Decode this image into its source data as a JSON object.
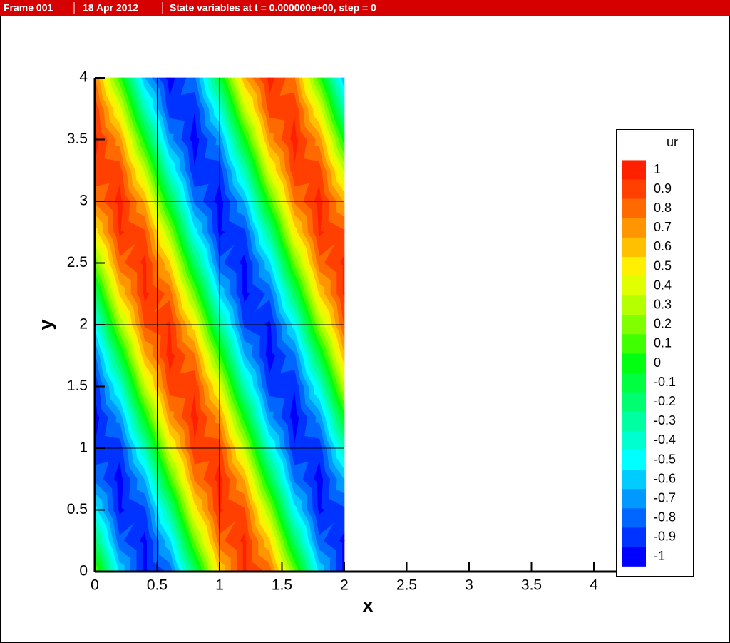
{
  "header": {
    "frame": "Frame 001",
    "date": "18 Apr 2012",
    "title": "State variables at t = 0.000000e+00, step = 0"
  },
  "chart_data": {
    "type": "contour",
    "x_label": "x",
    "y_label": "y",
    "xlim": [
      0,
      4.4
    ],
    "ylim": [
      0,
      4
    ],
    "xticks": [
      0,
      0.5,
      1,
      1.5,
      2,
      2.5,
      3,
      3.5,
      4
    ],
    "yticks": [
      0,
      0.5,
      1,
      1.5,
      2,
      2.5,
      3,
      3.5,
      4
    ],
    "mesh_x": [
      0.5,
      1,
      1.5
    ],
    "mesh_y": [
      1,
      2,
      3
    ],
    "x": [
      0,
      0.2,
      0.4,
      0.6,
      0.8,
      1,
      1.2,
      1.4,
      1.6,
      1.8,
      2
    ],
    "y": [
      0,
      0.25,
      0.5,
      0.75,
      1,
      1.25,
      1.5,
      1.75,
      2,
      2.25,
      2.5,
      2.75,
      3,
      3.25,
      3.5,
      3.75,
      4
    ],
    "z": [
      [
        0.17,
        -0.57,
        -0.98,
        -0.82,
        -0.17,
        0.57,
        0.98,
        0.82,
        0.17,
        -0.57,
        -0.98
      ],
      [
        -0.17,
        -0.82,
        -0.98,
        -0.57,
        0.17,
        0.82,
        0.98,
        0.57,
        -0.17,
        -0.82,
        -0.98
      ],
      [
        -0.5,
        -0.97,
        -0.87,
        -0.26,
        0.5,
        0.97,
        0.87,
        0.26,
        -0.5,
        -0.97,
        -0.87
      ],
      [
        -0.77,
        -1,
        -0.64,
        0.09,
        0.77,
        1,
        0.64,
        -0.09,
        -0.77,
        -1,
        -0.64
      ],
      [
        -0.94,
        -0.91,
        -0.34,
        0.42,
        0.94,
        0.91,
        0.34,
        -0.42,
        -0.94,
        -0.91,
        -0.34
      ],
      [
        -1,
        -0.71,
        0,
        0.71,
        1,
        0.71,
        0,
        -0.71,
        -1,
        -0.71,
        0
      ],
      [
        -0.94,
        -0.42,
        0.34,
        0.91,
        0.94,
        0.42,
        -0.34,
        -0.91,
        -0.94,
        -0.42,
        0.34
      ],
      [
        -0.77,
        -0.09,
        0.64,
        1,
        0.77,
        0.09,
        -0.64,
        -1,
        -0.77,
        -0.09,
        0.64
      ],
      [
        -0.5,
        0.26,
        0.87,
        0.97,
        0.5,
        -0.26,
        -0.87,
        -0.97,
        -0.5,
        0.26,
        0.87
      ],
      [
        -0.17,
        0.57,
        0.98,
        0.82,
        0.17,
        -0.57,
        -0.98,
        -0.82,
        -0.17,
        0.57,
        0.98
      ],
      [
        0.17,
        0.82,
        0.98,
        0.57,
        -0.17,
        -0.82,
        -0.98,
        -0.57,
        0.17,
        0.82,
        0.98
      ],
      [
        0.5,
        0.97,
        0.87,
        0.26,
        -0.5,
        -0.97,
        -0.87,
        -0.26,
        0.5,
        0.97,
        0.87
      ],
      [
        0.77,
        1,
        0.64,
        -0.09,
        -0.77,
        -1,
        -0.64,
        0.09,
        0.77,
        1,
        0.64
      ],
      [
        0.94,
        0.91,
        0.34,
        -0.42,
        -0.94,
        -0.91,
        -0.34,
        0.42,
        0.94,
        0.91,
        0.34
      ],
      [
        1,
        0.71,
        0,
        -0.71,
        -1,
        -0.71,
        0,
        0.71,
        1,
        0.71,
        0
      ],
      [
        0.94,
        0.42,
        -0.34,
        -0.91,
        -0.94,
        -0.42,
        0.34,
        0.91,
        0.94,
        0.42,
        -0.34
      ],
      [
        0.77,
        0.09,
        -0.64,
        -1,
        -0.77,
        -0.09,
        0.64,
        1,
        0.77,
        0.09,
        -0.64
      ]
    ],
    "colorbar": {
      "title": "ur",
      "levels": [
        1,
        0.9,
        0.8,
        0.7,
        0.6,
        0.5,
        0.4,
        0.3,
        0.2,
        0.1,
        0,
        -0.1,
        -0.2,
        -0.3,
        -0.4,
        -0.5,
        -0.6,
        -0.7,
        -0.8,
        -0.9,
        -1
      ],
      "colors": [
        "#ff2000",
        "#ff4000",
        "#ff6a00",
        "#ff9500",
        "#ffc000",
        "#ffef00",
        "#e0ff00",
        "#b4ff00",
        "#80ff00",
        "#40ff00",
        "#00ff10",
        "#00ff40",
        "#00ff70",
        "#00ffa0",
        "#00ffd0",
        "#00ffff",
        "#00ccff",
        "#0099ff",
        "#0066ff",
        "#0033ff",
        "#0000ff"
      ]
    }
  }
}
